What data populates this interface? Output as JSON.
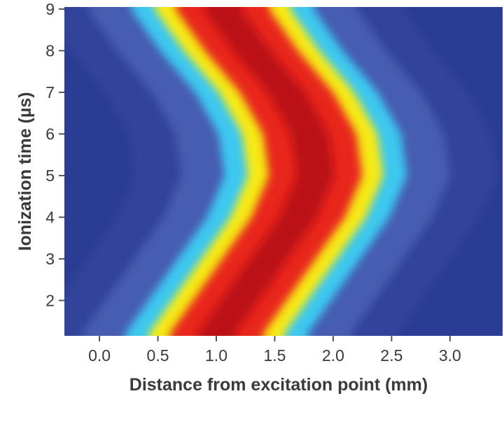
{
  "chart_data": {
    "type": "heatmap",
    "title": "",
    "xlabel": "Distance from excitation point (mm)",
    "ylabel": "Ionization time (µs)",
    "xlim": [
      -0.3,
      3.45
    ],
    "ylim": [
      1.15,
      9.05
    ],
    "xticks": [
      "0.0",
      "0.5",
      "1.0",
      "1.5",
      "2.0",
      "2.5",
      "3.0"
    ],
    "xtick_values": [
      0.0,
      0.5,
      1.0,
      1.5,
      2.0,
      2.5,
      3.0
    ],
    "yticks": [
      "2",
      "3",
      "4",
      "5",
      "6",
      "7",
      "8",
      "9"
    ],
    "ytick_values": [
      2,
      3,
      4,
      5,
      6,
      7,
      8,
      9
    ],
    "colormap": [
      "#2a3e9a",
      "#3ec8f0",
      "#f6ea18",
      "#e8281c",
      "#b40e16"
    ],
    "ridge": [
      {
        "t": 1.2,
        "x": 1.0
      },
      {
        "t": 2.0,
        "x": 1.2
      },
      {
        "t": 3.0,
        "x": 1.45
      },
      {
        "t": 4.0,
        "x": 1.7
      },
      {
        "t": 5.0,
        "x": 1.85
      },
      {
        "t": 6.0,
        "x": 1.8
      },
      {
        "t": 7.0,
        "x": 1.6
      },
      {
        "t": 8.0,
        "x": 1.3
      },
      {
        "t": 9.0,
        "x": 1.05
      }
    ]
  }
}
